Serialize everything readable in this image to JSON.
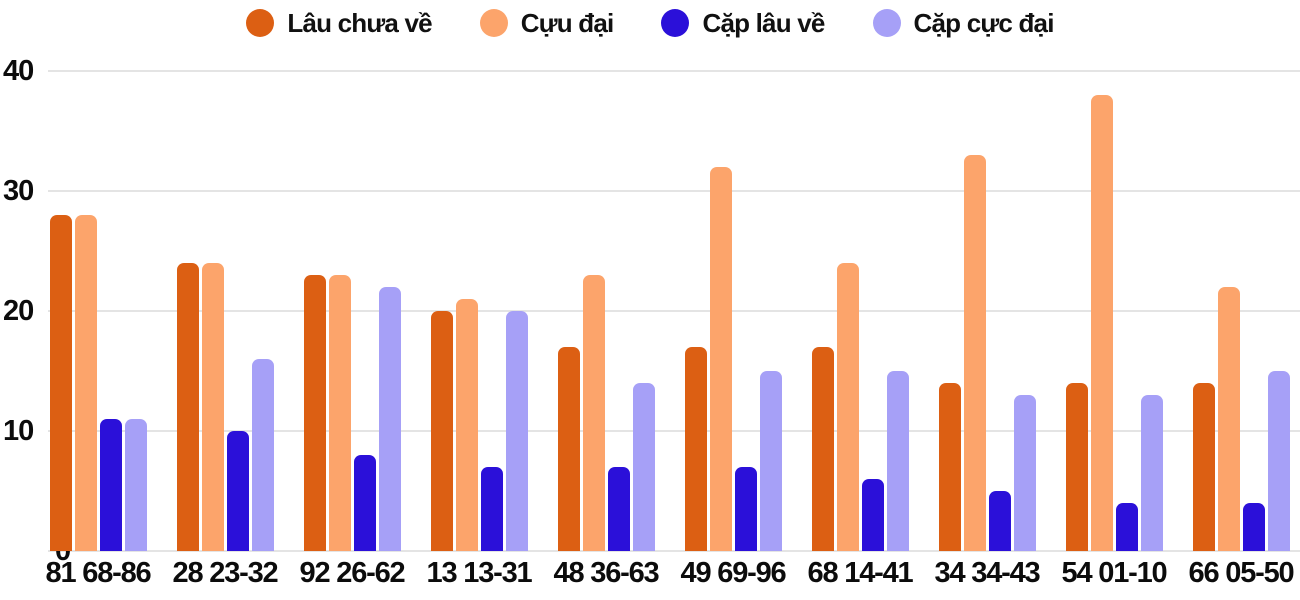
{
  "chart_data": {
    "type": "bar",
    "categories": [
      "81 68-86",
      "28 23-32",
      "92 26-62",
      "13 13-31",
      "48 36-63",
      "49 69-96",
      "68 14-41",
      "34 34-43",
      "54 01-10",
      "66 05-50"
    ],
    "series": [
      {
        "name": "Lâu chưa về",
        "color": "#DC5F13",
        "values": [
          28,
          24,
          23,
          20,
          17,
          17,
          17,
          14,
          14,
          14
        ]
      },
      {
        "name": "Cựu đại",
        "color": "#FCA46B",
        "values": [
          28,
          24,
          23,
          21,
          23,
          32,
          24,
          33,
          38,
          22
        ]
      },
      {
        "name": "Cặp lâu về",
        "color": "#2B10D9",
        "values": [
          11,
          10,
          8,
          7,
          7,
          7,
          6,
          5,
          4,
          4
        ]
      },
      {
        "name": "Cặp cực đại",
        "color": "#A6A0F7",
        "values": [
          11,
          16,
          22,
          20,
          14,
          15,
          15,
          13,
          13,
          15
        ]
      }
    ],
    "title": "",
    "xlabel": "",
    "ylabel": "",
    "ylim": [
      0,
      40
    ],
    "yticks": [
      0,
      10,
      20,
      30,
      40
    ],
    "grid": true,
    "legend_position": "top",
    "text_color": "#0c0c0c",
    "grid_color": "#e4e4e4",
    "background_color": "#ffffff"
  }
}
